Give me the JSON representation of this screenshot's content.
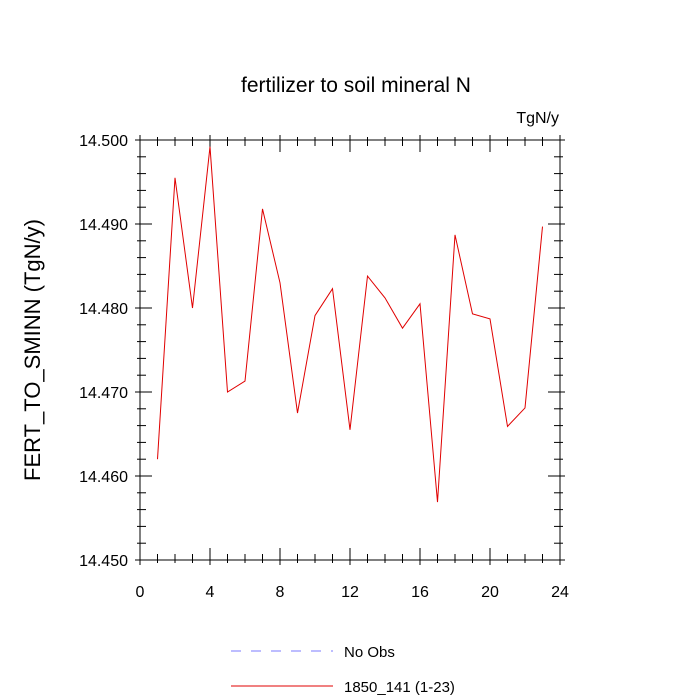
{
  "chart_data": {
    "type": "line",
    "title": "fertilizer to soil mineral N",
    "units": "TgN/y",
    "ylabel": "FERT_TO_SMINN  (TgN/y)",
    "xlabel": "",
    "xlim": [
      0,
      24
    ],
    "ylim": [
      14.45,
      14.5
    ],
    "x_ticks": [
      0,
      4,
      8,
      12,
      16,
      20,
      24
    ],
    "x_tick_labels": [
      "0",
      "4",
      "8",
      "12",
      "16",
      "20",
      "24"
    ],
    "y_ticks": [
      14.45,
      14.46,
      14.47,
      14.48,
      14.49,
      14.5
    ],
    "y_tick_labels": [
      "14.450",
      "14.460",
      "14.470",
      "14.480",
      "14.490",
      "14.500"
    ],
    "grid": false,
    "legend_position": "bottom-center",
    "series": [
      {
        "name": "1850_141 (1-23)",
        "color": "#e00000",
        "style": "solid",
        "x": [
          1,
          2,
          3,
          4,
          5,
          6,
          7,
          8,
          9,
          10,
          11,
          12,
          13,
          14,
          15,
          16,
          17,
          18,
          19,
          20,
          21,
          22,
          23
        ],
        "values": [
          14.462,
          14.4955,
          14.48,
          14.4992,
          14.47,
          14.4713,
          14.4918,
          14.483,
          14.4675,
          14.4791,
          14.4823,
          14.4655,
          14.4838,
          14.4812,
          14.4776,
          14.4805,
          14.4569,
          14.4887,
          14.4793,
          14.4787,
          14.4659,
          14.4681,
          14.4897
        ]
      }
    ],
    "legend": [
      {
        "label": "No Obs",
        "color": "#7b7bff",
        "style": "dashed"
      },
      {
        "label": "1850_141 (1-23)",
        "color": "#e00000",
        "style": "solid"
      }
    ]
  }
}
